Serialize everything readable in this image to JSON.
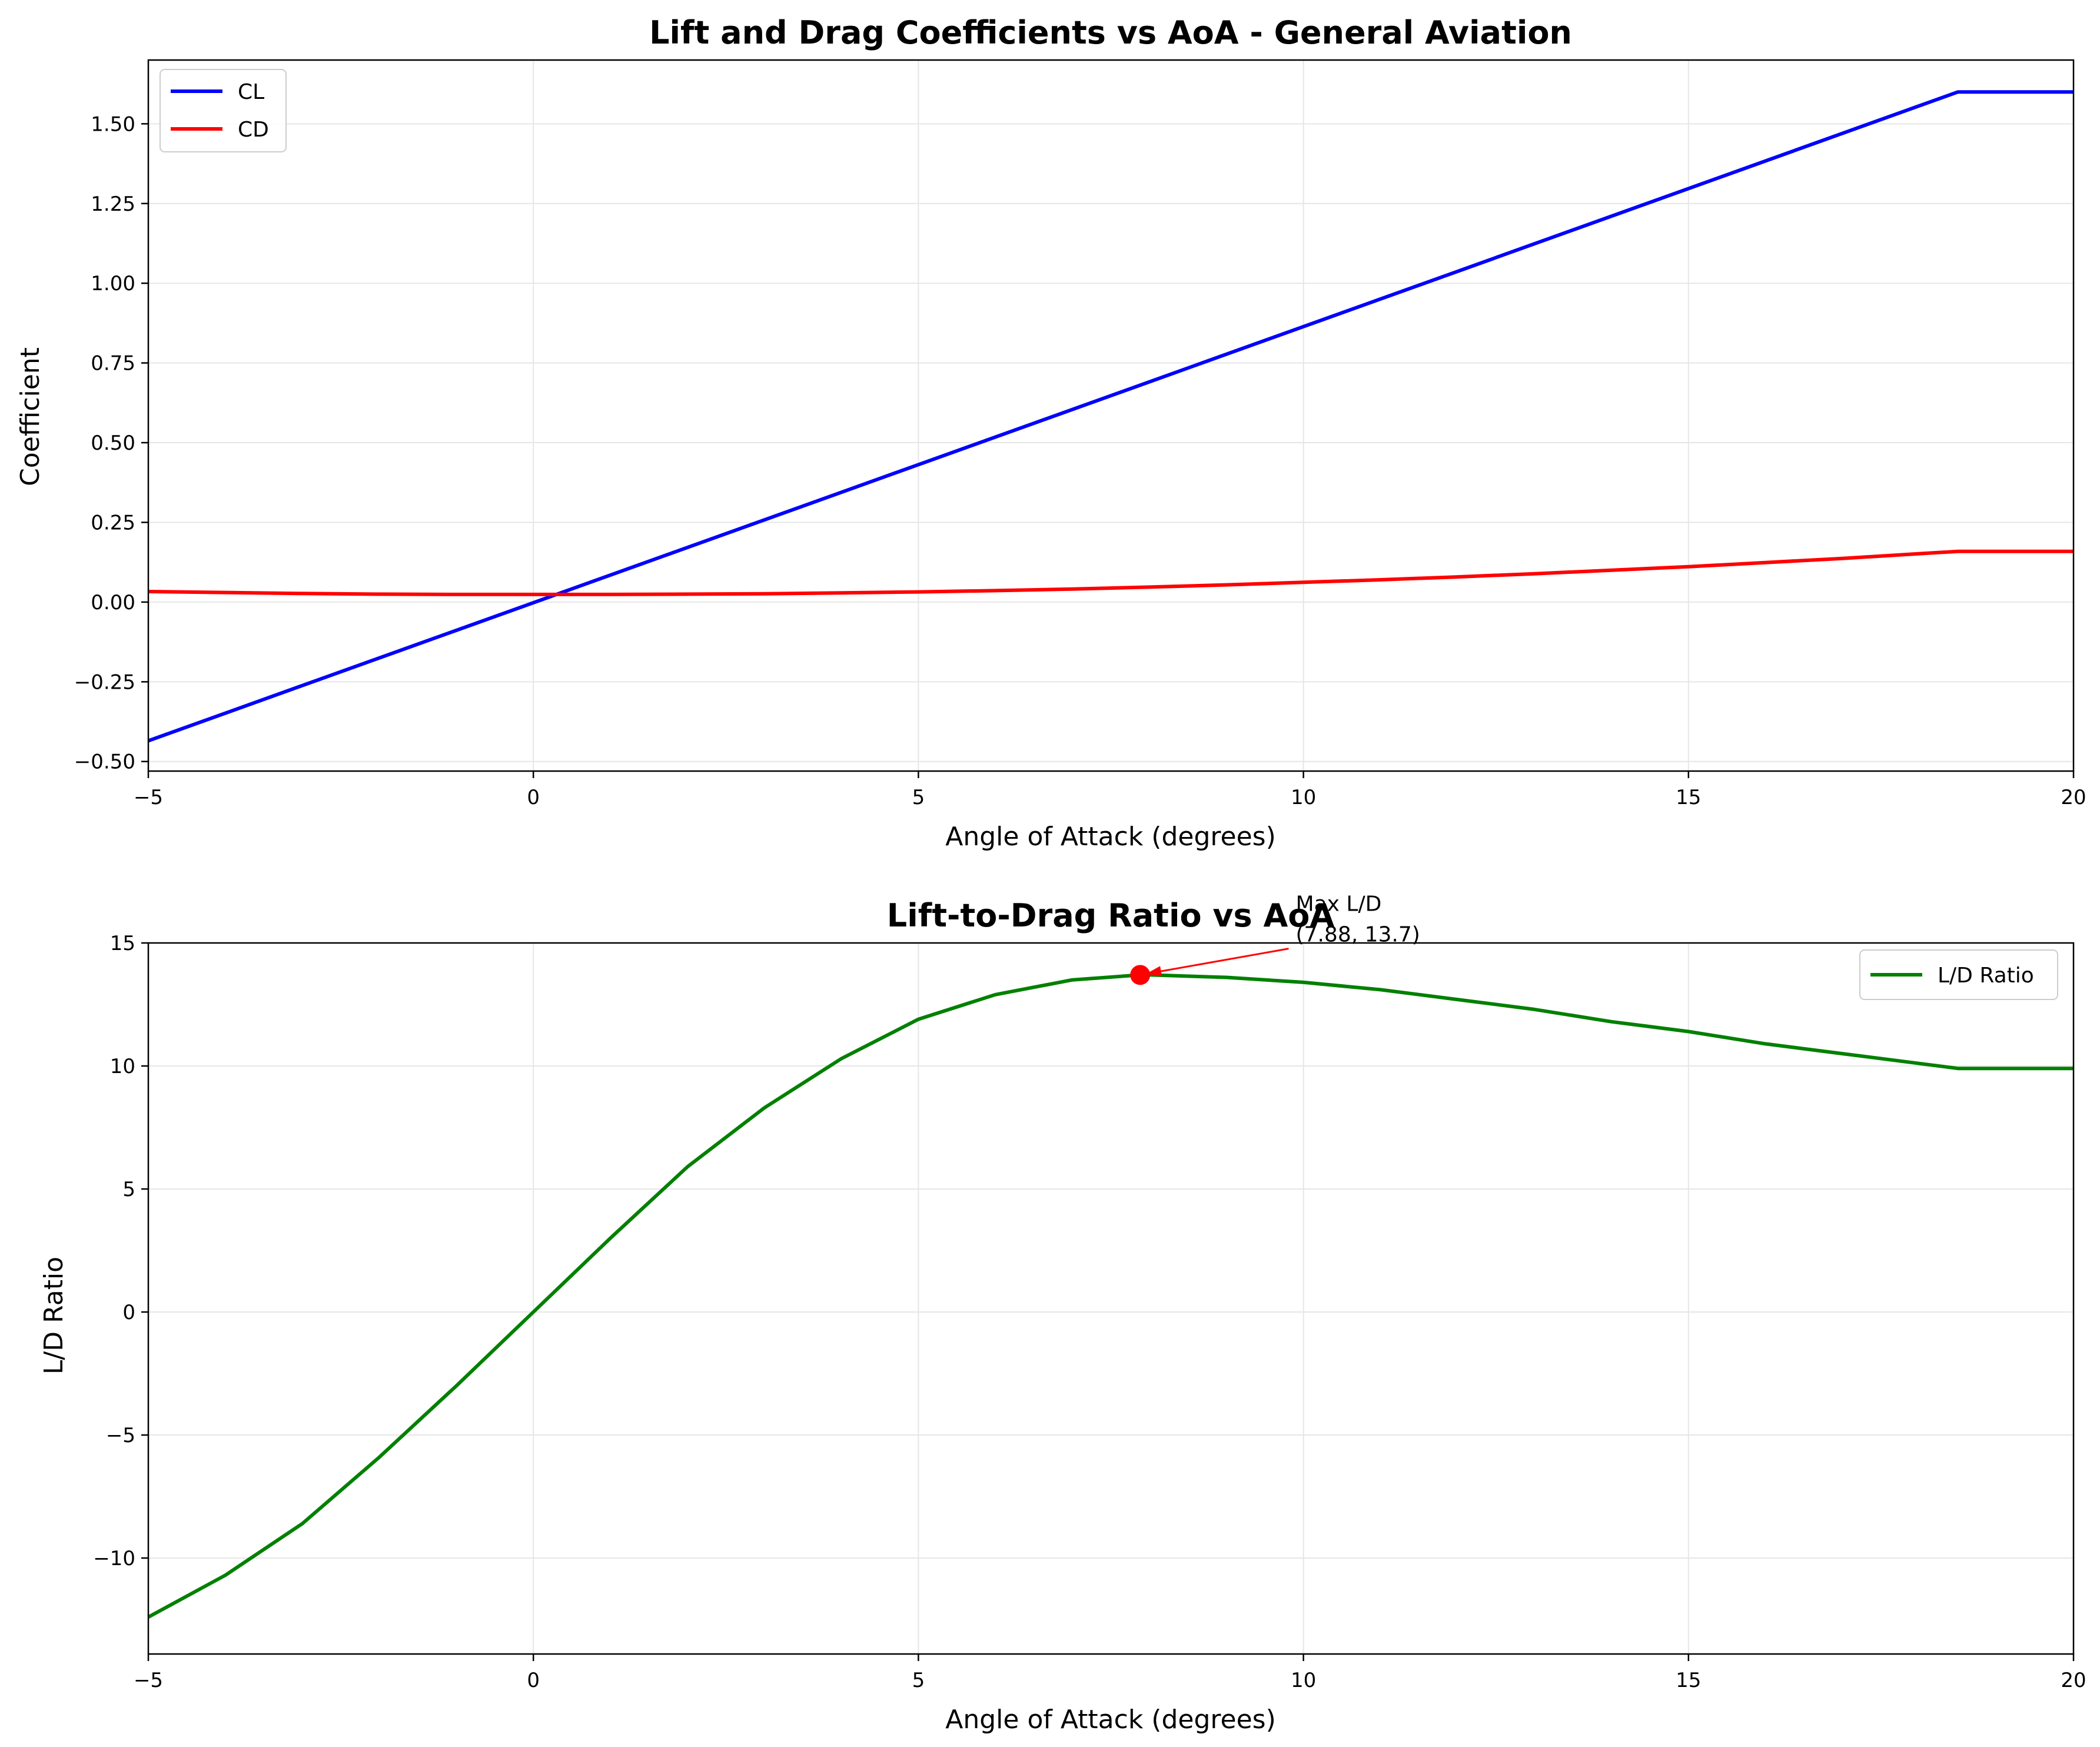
{
  "chart_data": [
    {
      "type": "line",
      "title": "Lift and Drag Coefficients vs AoA - General Aviation",
      "xlabel": "Angle of Attack (degrees)",
      "ylabel": "Coefficient",
      "xlim": [
        -5,
        20
      ],
      "ylim": [
        -0.53,
        1.7
      ],
      "xticks": [
        -5,
        0,
        5,
        10,
        15,
        20
      ],
      "xtick_labels": [
        "−5",
        "0",
        "5",
        "10",
        "15",
        "20"
      ],
      "yticks": [
        -0.5,
        -0.25,
        0.0,
        0.25,
        0.5,
        0.75,
        1.0,
        1.25,
        1.5
      ],
      "ytick_labels": [
        "−0.50",
        "−0.25",
        "0.00",
        "0.25",
        "0.50",
        "0.75",
        "1.00",
        "1.25",
        "1.50"
      ],
      "grid": true,
      "legend_position": "upper left",
      "series": [
        {
          "name": "CL",
          "color": "#0000ff",
          "x": [
            -5,
            18.5,
            20
          ],
          "y": [
            -0.435,
            1.6,
            1.6
          ]
        },
        {
          "name": "CD",
          "color": "#ff0000",
          "x": [
            -5,
            -4,
            -3,
            -2,
            -1,
            0,
            1,
            2,
            3,
            4,
            5,
            6,
            7,
            8,
            9,
            10,
            11,
            12,
            13,
            14,
            15,
            16,
            17,
            18,
            18.5,
            19,
            20
          ],
          "y": [
            0.033,
            0.03,
            0.027,
            0.025,
            0.024,
            0.024,
            0.024,
            0.025,
            0.026,
            0.029,
            0.032,
            0.036,
            0.041,
            0.047,
            0.054,
            0.062,
            0.07,
            0.079,
            0.089,
            0.1,
            0.111,
            0.124,
            0.137,
            0.152,
            0.159,
            0.159,
            0.159
          ]
        }
      ]
    },
    {
      "type": "line",
      "title": "Lift-to-Drag Ratio vs AoA",
      "xlabel": "Angle of Attack (degrees)",
      "ylabel": "L/D Ratio",
      "xlim": [
        -5,
        20
      ],
      "ylim": [
        -13.9,
        15
      ],
      "xticks": [
        -5,
        0,
        5,
        10,
        15,
        20
      ],
      "xtick_labels": [
        "−5",
        "0",
        "5",
        "10",
        "15",
        "20"
      ],
      "yticks": [
        -10,
        -5,
        0,
        5,
        10,
        15
      ],
      "ytick_labels": [
        "−10",
        "−5",
        "0",
        "5",
        "10",
        "15"
      ],
      "grid": true,
      "legend_position": "upper right",
      "series": [
        {
          "name": "L/D Ratio",
          "color": "#008000",
          "x": [
            -5,
            -4,
            -3,
            -2,
            -1,
            0,
            1,
            2,
            3,
            4,
            5,
            6,
            7,
            7.88,
            8,
            9,
            10,
            11,
            12,
            13,
            14,
            15,
            16,
            17,
            18,
            18.5,
            19,
            20
          ],
          "y": [
            -12.4,
            -10.7,
            -8.6,
            -5.9,
            -3.0,
            0.0,
            3.0,
            5.9,
            8.3,
            10.3,
            11.9,
            12.9,
            13.5,
            13.7,
            13.7,
            13.6,
            13.4,
            13.1,
            12.7,
            12.3,
            11.8,
            11.4,
            10.9,
            10.5,
            10.1,
            9.9,
            9.9,
            9.9
          ]
        }
      ],
      "marker": {
        "x": 7.88,
        "y": 13.7,
        "color": "#ff0000"
      },
      "annotation": {
        "line1": "Max L/D",
        "line2": "(7.88, 13.7)",
        "text_x": 9.9,
        "text_y": 16.3,
        "target_x": 7.88,
        "target_y": 13.7,
        "color": "#ff0000"
      }
    }
  ]
}
